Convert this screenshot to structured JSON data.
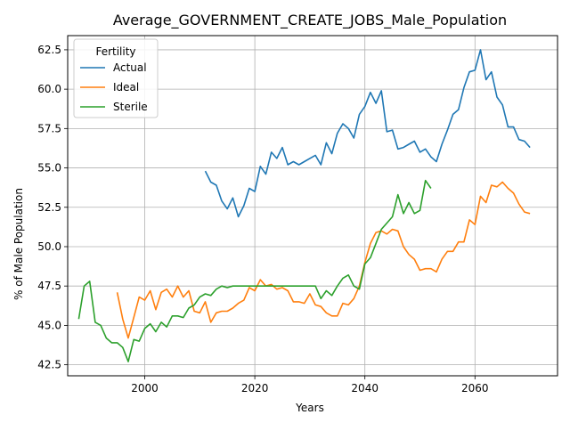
{
  "chart_data": {
    "type": "line",
    "title": "Average_GOVERNMENT_CREATE_JOBS_Male_Population",
    "xlabel": "Years",
    "ylabel": "% of Male Population",
    "xlim": [
      1986,
      2075
    ],
    "ylim": [
      41.8,
      63.4
    ],
    "xticks": [
      2000,
      2020,
      2040,
      2060
    ],
    "yticks": [
      42.5,
      45.0,
      47.5,
      50.0,
      52.5,
      55.0,
      57.5,
      60.0,
      62.5
    ],
    "ytick_labels": [
      "42.5",
      "45.0",
      "47.5",
      "50.0",
      "52.5",
      "55.0",
      "57.5",
      "60.0",
      "62.5"
    ],
    "grid": true,
    "legend": {
      "title": "Fertility",
      "placement": "top-left"
    },
    "series": [
      {
        "name": "Actual",
        "color": "#1f77b4",
        "x": [
          2011,
          2012,
          2013,
          2014,
          2015,
          2016,
          2017,
          2018,
          2019,
          2020,
          2021,
          2022,
          2023,
          2024,
          2025,
          2026,
          2027,
          2028,
          2029,
          2030,
          2031,
          2032,
          2033,
          2034,
          2035,
          2036,
          2037,
          2038,
          2039,
          2040,
          2041,
          2042,
          2043,
          2044,
          2045,
          2046,
          2047,
          2048,
          2049,
          2050,
          2051,
          2052,
          2053,
          2054,
          2055,
          2056,
          2057,
          2058,
          2059,
          2060,
          2061,
          2062,
          2063,
          2064,
          2065,
          2066,
          2067,
          2068,
          2069,
          2070
        ],
        "y": [
          54.8,
          54.1,
          53.9,
          52.9,
          52.4,
          53.1,
          51.9,
          52.6,
          53.7,
          53.5,
          55.1,
          54.6,
          56.0,
          55.6,
          56.3,
          55.2,
          55.4,
          55.2,
          55.4,
          55.6,
          55.8,
          55.2,
          56.6,
          55.9,
          57.2,
          57.8,
          57.5,
          56.9,
          58.4,
          58.9,
          59.8,
          59.1,
          59.9,
          57.3,
          57.4,
          56.2,
          56.3,
          56.5,
          56.7,
          56.0,
          56.2,
          55.7,
          55.4,
          56.5,
          57.4,
          58.4,
          58.7,
          60.1,
          61.1,
          61.2,
          62.5,
          60.6,
          61.1,
          59.5,
          59.0,
          57.6,
          57.6,
          56.8,
          56.7,
          56.3
        ]
      },
      {
        "name": "Ideal",
        "color": "#ff7f0e",
        "x": [
          1995,
          1996,
          1997,
          1998,
          1999,
          2000,
          2001,
          2002,
          2003,
          2004,
          2005,
          2006,
          2007,
          2008,
          2009,
          2010,
          2011,
          2012,
          2013,
          2014,
          2015,
          2016,
          2017,
          2018,
          2019,
          2020,
          2021,
          2022,
          2023,
          2024,
          2025,
          2026,
          2027,
          2028,
          2029,
          2030,
          2031,
          2032,
          2033,
          2034,
          2035,
          2036,
          2037,
          2038,
          2039,
          2040,
          2041,
          2042,
          2043,
          2044,
          2045,
          2046,
          2047,
          2048,
          2049,
          2050,
          2051,
          2052,
          2053,
          2054,
          2055,
          2056,
          2057,
          2058,
          2059,
          2060,
          2061,
          2062,
          2063,
          2064,
          2065,
          2066,
          2067,
          2068,
          2069,
          2070
        ],
        "y": [
          47.1,
          45.4,
          44.2,
          45.5,
          46.8,
          46.6,
          47.2,
          46.0,
          47.1,
          47.3,
          46.8,
          47.5,
          46.8,
          47.2,
          45.9,
          45.8,
          46.5,
          45.2,
          45.8,
          45.9,
          45.9,
          46.1,
          46.4,
          46.6,
          47.4,
          47.2,
          47.9,
          47.5,
          47.6,
          47.3,
          47.4,
          47.2,
          46.5,
          46.5,
          46.4,
          47.0,
          46.3,
          46.2,
          45.8,
          45.6,
          45.6,
          46.4,
          46.3,
          46.7,
          47.5,
          49.0,
          50.2,
          50.9,
          51.0,
          50.8,
          51.1,
          51.0,
          50.0,
          49.5,
          49.2,
          48.5,
          48.6,
          48.6,
          48.4,
          49.2,
          49.7,
          49.7,
          50.3,
          50.3,
          51.7,
          51.4,
          53.2,
          52.8,
          53.9,
          53.8,
          54.1,
          53.7,
          53.4,
          52.7,
          52.2,
          52.1
        ]
      },
      {
        "name": "Sterile",
        "color": "#2ca02c",
        "x": [
          1988,
          1989,
          1990,
          1991,
          1992,
          1993,
          1994,
          1995,
          1996,
          1997,
          1998,
          1999,
          2000,
          2001,
          2002,
          2003,
          2004,
          2005,
          2006,
          2007,
          2008,
          2009,
          2010,
          2011,
          2012,
          2013,
          2014,
          2015,
          2016,
          2017,
          2018,
          2019,
          2020,
          2021,
          2022,
          2023,
          2024,
          2025,
          2026,
          2027,
          2028,
          2029,
          2030,
          2031,
          2032,
          2033,
          2034,
          2035,
          2036,
          2037,
          2038,
          2039,
          2040,
          2041,
          2042,
          2043,
          2044,
          2045,
          2046,
          2047,
          2048,
          2049,
          2050,
          2051,
          2052
        ],
        "y": [
          45.4,
          47.5,
          47.8,
          45.2,
          45.0,
          44.2,
          43.9,
          43.9,
          43.6,
          42.7,
          44.1,
          44.0,
          44.8,
          45.1,
          44.6,
          45.2,
          44.9,
          45.6,
          45.6,
          45.5,
          46.1,
          46.3,
          46.8,
          47.0,
          46.9,
          47.3,
          47.5,
          47.4,
          47.5,
          47.5,
          47.5,
          47.5,
          47.5,
          47.5,
          47.5,
          47.5,
          47.5,
          47.5,
          47.5,
          47.5,
          47.5,
          47.5,
          47.5,
          47.5,
          46.7,
          47.2,
          46.9,
          47.5,
          48.0,
          48.2,
          47.5,
          47.3,
          48.9,
          49.3,
          50.2,
          51.1,
          51.5,
          51.9,
          53.3,
          52.1,
          52.8,
          52.1,
          52.3,
          54.2,
          53.7
        ]
      }
    ]
  }
}
